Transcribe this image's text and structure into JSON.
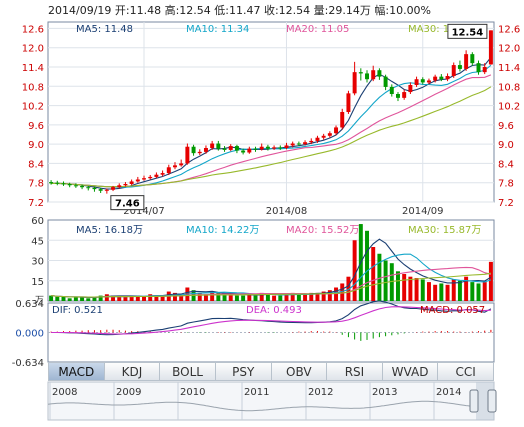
{
  "header": {
    "text": "2014/09/19 开:11.48 高:12.54 低:11.47 收:12.54 量:29.14万 幅:10.00%"
  },
  "price_legend": [
    {
      "label": "MA5: 11.48",
      "color": "#1b3f73"
    },
    {
      "label": "MA10: 11.34",
      "color": "#13a6c9"
    },
    {
      "label": "MA20: 11.05",
      "color": "#e0559b"
    },
    {
      "label": "MA30: 10.60",
      "color": "#98b92c"
    }
  ],
  "volume_legend": [
    {
      "label": "MA5: 16.18万",
      "color": "#1b3f73"
    },
    {
      "label": "MA10: 14.22万",
      "color": "#13a6c9"
    },
    {
      "label": "MA20: 15.52万",
      "color": "#e0559b"
    },
    {
      "label": "MA30: 15.87万",
      "color": "#98b92c"
    }
  ],
  "macd_legend": [
    {
      "label": "DIF: 0.521",
      "color": "#1b3f73"
    },
    {
      "label": "DEA: 0.493",
      "color": "#cc33cc"
    },
    {
      "label": "MACD: 0.057",
      "color": "#c00000"
    }
  ],
  "volume_unit": "万",
  "tabs": [
    "MACD",
    "KDJ",
    "BOLL",
    "PSY",
    "OBV",
    "RSI",
    "WVAD",
    "CCI"
  ],
  "active_tab": "MACD",
  "colors": {
    "up": "#e60000",
    "down": "#009900",
    "grid": "#dde3ea",
    "axis": "#7a8aa0"
  },
  "chart_data": [
    {
      "type": "candlestick",
      "ylim": [
        7.2,
        12.8
      ],
      "yticks": [
        "7.2",
        "7.8",
        "8.4",
        "9.0",
        "9.6",
        "10.2",
        "10.8",
        "11.4",
        "12.0",
        "12.6"
      ],
      "xticks": [
        {
          "label": "2014/07",
          "index": 15
        },
        {
          "label": "2014/08",
          "index": 38
        },
        {
          "label": "2014/09",
          "index": 60
        }
      ],
      "callouts": [
        {
          "label": "7.46",
          "index": 9,
          "value": 7.46
        },
        {
          "label": "12.54",
          "index": 71,
          "value": 12.54
        }
      ],
      "candles": [
        [
          7.82,
          7.78,
          7.88,
          7.74
        ],
        [
          7.8,
          7.78,
          7.86,
          7.72
        ],
        [
          7.78,
          7.76,
          7.84,
          7.7
        ],
        [
          7.76,
          7.72,
          7.8,
          7.66
        ],
        [
          7.72,
          7.7,
          7.78,
          7.64
        ],
        [
          7.7,
          7.66,
          7.74,
          7.6
        ],
        [
          7.66,
          7.64,
          7.7,
          7.56
        ],
        [
          7.64,
          7.6,
          7.68,
          7.52
        ],
        [
          7.6,
          7.55,
          7.64,
          7.48
        ],
        [
          7.55,
          7.58,
          7.62,
          7.46
        ],
        [
          7.58,
          7.66,
          7.7,
          7.54
        ],
        [
          7.66,
          7.72,
          7.78,
          7.62
        ],
        [
          7.72,
          7.76,
          7.82,
          7.68
        ],
        [
          7.76,
          7.84,
          7.9,
          7.72
        ],
        [
          7.84,
          7.9,
          7.98,
          7.8
        ],
        [
          7.9,
          7.94,
          8.02,
          7.86
        ],
        [
          7.94,
          7.98,
          8.04,
          7.9
        ],
        [
          7.98,
          8.05,
          8.12,
          7.94
        ],
        [
          8.05,
          8.1,
          8.18,
          8.0
        ],
        [
          8.1,
          8.28,
          8.36,
          8.04
        ],
        [
          8.28,
          8.34,
          8.44,
          8.22
        ],
        [
          8.34,
          8.4,
          8.52,
          8.3
        ],
        [
          8.4,
          8.92,
          9.02,
          8.36
        ],
        [
          8.92,
          8.72,
          8.98,
          8.64
        ],
        [
          8.72,
          8.76,
          8.84,
          8.66
        ],
        [
          8.76,
          8.88,
          8.96,
          8.7
        ],
        [
          8.88,
          9.02,
          9.1,
          8.82
        ],
        [
          9.02,
          8.86,
          9.1,
          8.8
        ],
        [
          8.86,
          8.82,
          8.94,
          8.76
        ],
        [
          8.82,
          8.94,
          9.0,
          8.78
        ],
        [
          8.94,
          8.8,
          8.98,
          8.72
        ],
        [
          8.8,
          8.74,
          8.86,
          8.68
        ],
        [
          8.74,
          8.86,
          8.92,
          8.7
        ],
        [
          8.86,
          8.84,
          8.92,
          8.76
        ],
        [
          8.84,
          8.92,
          9.02,
          8.8
        ],
        [
          8.92,
          8.86,
          8.98,
          8.8
        ],
        [
          8.86,
          8.9,
          8.96,
          8.82
        ],
        [
          8.9,
          8.88,
          8.96,
          8.82
        ],
        [
          8.88,
          8.96,
          9.04,
          8.84
        ],
        [
          8.96,
          9.02,
          9.08,
          8.9
        ],
        [
          9.02,
          9.0,
          9.08,
          8.94
        ],
        [
          9.0,
          9.06,
          9.12,
          8.96
        ],
        [
          9.06,
          9.1,
          9.18,
          9.0
        ],
        [
          9.1,
          9.2,
          9.26,
          9.04
        ],
        [
          9.2,
          9.26,
          9.32,
          9.14
        ],
        [
          9.26,
          9.34,
          9.4,
          9.2
        ],
        [
          9.34,
          9.52,
          9.58,
          9.28
        ],
        [
          9.52,
          10.0,
          10.1,
          9.46
        ],
        [
          10.0,
          10.58,
          10.66,
          9.94
        ],
        [
          10.58,
          11.24,
          11.56,
          10.52
        ],
        [
          11.24,
          11.2,
          11.36,
          10.98
        ],
        [
          11.2,
          11.02,
          11.3,
          10.92
        ],
        [
          11.02,
          11.3,
          11.44,
          10.96
        ],
        [
          11.3,
          11.1,
          11.36,
          11.0
        ],
        [
          11.1,
          10.78,
          11.16,
          10.68
        ],
        [
          10.78,
          10.56,
          10.86,
          10.48
        ],
        [
          10.56,
          10.44,
          10.62,
          10.34
        ],
        [
          10.44,
          10.62,
          10.7,
          10.38
        ],
        [
          10.62,
          10.84,
          10.92,
          10.56
        ],
        [
          10.84,
          11.02,
          11.1,
          10.78
        ],
        [
          11.02,
          10.92,
          11.08,
          10.86
        ],
        [
          10.92,
          10.98,
          11.04,
          10.86
        ],
        [
          10.98,
          11.1,
          11.16,
          10.92
        ],
        [
          11.1,
          11.02,
          11.18,
          10.96
        ],
        [
          11.02,
          11.12,
          11.2,
          10.96
        ],
        [
          11.12,
          11.46,
          11.54,
          11.06
        ],
        [
          11.46,
          11.34,
          11.6,
          11.26
        ],
        [
          11.34,
          11.8,
          11.92,
          11.28
        ],
        [
          11.8,
          11.52,
          11.86,
          11.44
        ],
        [
          11.52,
          11.24,
          11.6,
          11.16
        ],
        [
          11.24,
          11.4,
          11.52,
          11.18
        ],
        [
          11.48,
          12.54,
          12.54,
          11.47
        ]
      ]
    },
    {
      "type": "bar",
      "ylim": [
        0,
        60
      ],
      "yticks": [
        "0",
        "15",
        "30",
        "45",
        "60"
      ],
      "values": [
        4,
        3,
        3,
        2,
        3,
        3,
        2,
        3,
        4,
        5,
        4,
        3,
        3,
        4,
        4,
        3,
        5,
        4,
        4,
        7,
        6,
        5,
        10,
        8,
        6,
        5,
        7,
        6,
        5,
        5,
        4,
        4,
        5,
        4,
        6,
        5,
        4,
        4,
        5,
        6,
        5,
        5,
        6,
        6,
        7,
        8,
        10,
        13,
        18,
        45,
        57,
        52,
        40,
        35,
        30,
        28,
        22,
        20,
        18,
        17,
        16,
        14,
        12,
        13,
        12,
        16,
        15,
        18,
        14,
        13,
        14,
        29
      ]
    },
    {
      "type": "bar",
      "ylim": [
        -0.634,
        0.634
      ],
      "yticks": [
        "0.634",
        "0.000",
        "-0.634"
      ],
      "values": [
        0.02,
        0.02,
        0.03,
        0.03,
        0.04,
        0.04,
        0.05,
        0.05,
        0.05,
        0.06,
        0.06,
        0.05,
        0.04,
        0.03,
        0.03,
        0.02,
        0.02,
        0.01,
        0.0,
        -0.01,
        0.0,
        0.01,
        -0.01,
        0.0,
        -0.01,
        -0.01,
        0.0,
        0.01,
        0.01,
        0.01,
        0.0,
        0.0,
        0.01,
        0.0,
        0.0,
        -0.01,
        -0.01,
        0.0,
        0.0,
        0.01,
        0.02,
        0.02,
        0.03,
        0.03,
        0.02,
        0.02,
        0.01,
        -0.05,
        -0.1,
        -0.15,
        -0.18,
        -0.16,
        -0.13,
        -0.1,
        -0.08,
        -0.06,
        -0.04,
        -0.02,
        0.0,
        0.01,
        0.02,
        0.02,
        0.03,
        0.03,
        0.03,
        0.02,
        0.02,
        0.01,
        0.02,
        0.03,
        0.04,
        0.057
      ]
    }
  ],
  "navigator": {
    "years": [
      "2008",
      "2009",
      "2010",
      "2011",
      "2012",
      "2013",
      "2014"
    ]
  }
}
